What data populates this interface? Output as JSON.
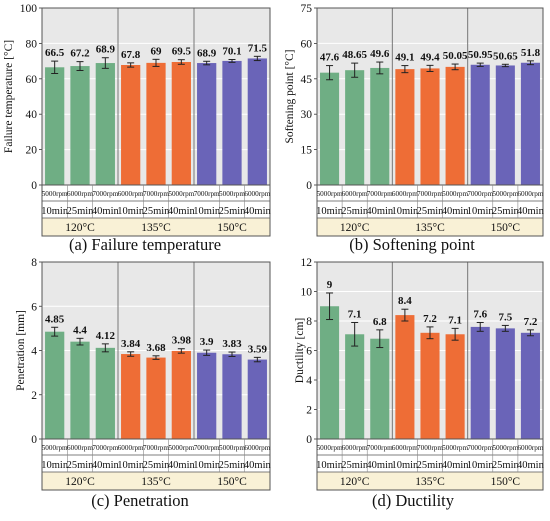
{
  "figure": {
    "colors": {
      "green": "#6fae84",
      "orange": "#ee6d36",
      "purple": "#6a64b8",
      "plot_bg": "#e8e8e8",
      "table_bg": "#f9f1d6",
      "grid": "#ffffff",
      "sep": "#777777",
      "error_bar": "#222222"
    },
    "groups": [
      "120°C",
      "135°C",
      "150°C"
    ],
    "time_labels": [
      "10min",
      "25min",
      "40min",
      "10min",
      "25min",
      "40min",
      "10min",
      "25min",
      "40min"
    ],
    "bar_group_color": [
      "green",
      "green",
      "green",
      "orange",
      "orange",
      "orange",
      "purple",
      "purple",
      "purple"
    ]
  },
  "chart_data": [
    {
      "type": "bar",
      "caption": "(a) Failure temperature",
      "ylabel": "Failure temperature [°C]",
      "ylim": [
        0,
        100
      ],
      "yticks": [
        0,
        20,
        40,
        60,
        80,
        100
      ],
      "rpm_labels": [
        "5000rpm",
        "6000rpm",
        "7000rpm",
        "6000rpm",
        "7000rpm",
        "5000rpm",
        "7000rpm",
        "5000rpm",
        "6000rpm"
      ],
      "values": [
        66.5,
        67.2,
        68.9,
        67.8,
        69,
        69.5,
        68.9,
        70.1,
        71.5
      ],
      "value_labels": [
        "66.5",
        "67.2",
        "68.9",
        "67.8",
        "69",
        "69.5",
        "68.9",
        "70.1",
        "71.5"
      ],
      "errors": [
        3.5,
        2.5,
        3.0,
        1.2,
        2.0,
        1.3,
        1.0,
        0.8,
        1.2
      ],
      "grid": true
    },
    {
      "type": "bar",
      "caption": "(b) Softening point",
      "ylabel": "Softening point [°C]",
      "ylim": [
        0,
        75
      ],
      "yticks": [
        0,
        15,
        30,
        45,
        60,
        75
      ],
      "rpm_labels": [
        "5000rpm",
        "6000rpm",
        "7000rpm",
        "6000rpm",
        "7000rpm",
        "5000rpm",
        "7000rpm",
        "5000rpm",
        "6000rpm"
      ],
      "values": [
        47.6,
        48.65,
        49.6,
        49.1,
        49.4,
        50.05,
        50.95,
        50.65,
        51.8
      ],
      "value_labels": [
        "47.6",
        "48.65",
        "49.6",
        "49.1",
        "49.4",
        "50.05",
        "50.95",
        "50.65",
        "51.8"
      ],
      "errors": [
        3.0,
        3.0,
        2.5,
        1.5,
        1.3,
        1.2,
        0.7,
        0.5,
        0.8
      ],
      "grid": true
    },
    {
      "type": "bar",
      "caption": "(c) Penetration",
      "ylabel": "Penetration [mm]",
      "ylim": [
        0,
        8
      ],
      "yticks": [
        0,
        2,
        4,
        6,
        8
      ],
      "rpm_labels": [
        "5000rpm",
        "6000rpm",
        "7000rpm",
        "6000rpm",
        "7000rpm",
        "5000rpm",
        "7000rpm",
        "5000rpm",
        "6000rpm"
      ],
      "values": [
        4.85,
        4.4,
        4.12,
        3.84,
        3.68,
        3.98,
        3.9,
        3.83,
        3.59
      ],
      "value_labels": [
        "4.85",
        "4.4",
        "4.12",
        "3.84",
        "3.68",
        "3.98",
        "3.9",
        "3.83",
        "3.59"
      ],
      "errors": [
        0.2,
        0.15,
        0.18,
        0.1,
        0.08,
        0.1,
        0.12,
        0.1,
        0.1
      ],
      "grid": true
    },
    {
      "type": "bar",
      "caption": "(d) Ductility",
      "ylabel": "Ductility [cm]",
      "ylim": [
        0,
        12
      ],
      "yticks": [
        0,
        2,
        4,
        6,
        8,
        10,
        12
      ],
      "rpm_labels": [
        "5000rpm",
        "6000rpm",
        "7000rpm",
        "6000rpm",
        "7000rpm",
        "5000rpm",
        "7000rpm",
        "5000rpm",
        "6000rpm"
      ],
      "values": [
        9,
        7.1,
        6.8,
        8.4,
        7.2,
        7.1,
        7.6,
        7.5,
        7.2
      ],
      "value_labels": [
        "9",
        "7.1",
        "6.8",
        "8.4",
        "7.2",
        "7.1",
        "7.6",
        "7.5",
        "7.2"
      ],
      "errors": [
        0.9,
        0.8,
        0.6,
        0.4,
        0.4,
        0.4,
        0.3,
        0.2,
        0.2
      ],
      "grid": true
    }
  ]
}
